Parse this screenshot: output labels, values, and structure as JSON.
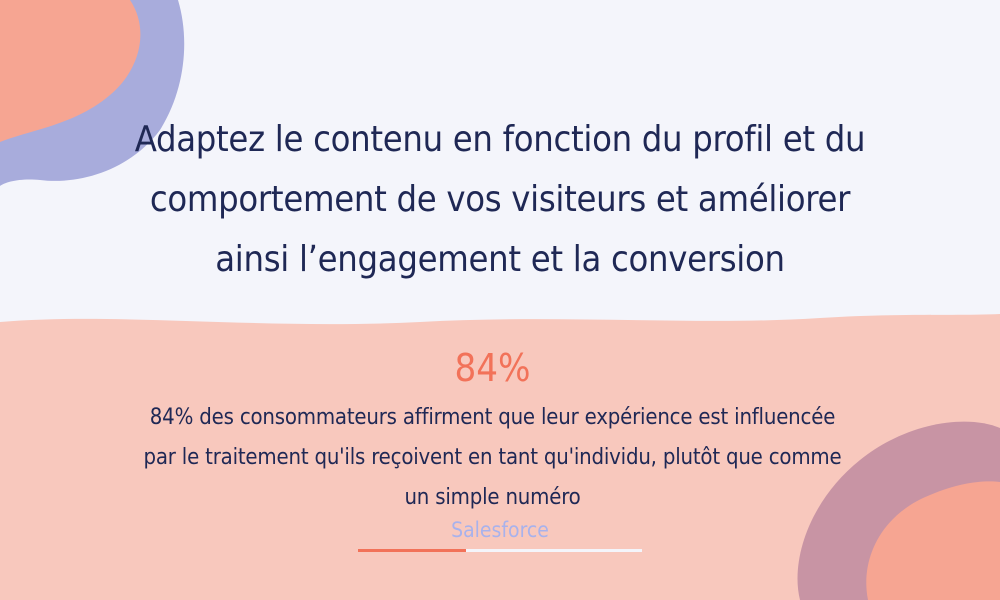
{
  "headline": "Adaptez le contenu en fonction du profil et du comportement de vos visiteurs et améliorer ainsi l’engagement et la conversion",
  "stat": "84%",
  "quote": "84% des consommateurs affirment que leur expérience est influencée par le traitement qu'ils reçoivent en tant qu'individu, plutôt que comme un simple numéro",
  "source": "Salesforce",
  "carousel_progress": 0.38,
  "colors": {
    "background_top": "#f4f5fb",
    "background_bottom": "#f8c8bd",
    "blob_lavender": "#a8acdc",
    "blob_mauve": "#c894a4",
    "blob_salmon": "#f6a592",
    "accent": "#f27259",
    "text_dark": "#1f2855",
    "source_text": "#a8b2ec"
  }
}
